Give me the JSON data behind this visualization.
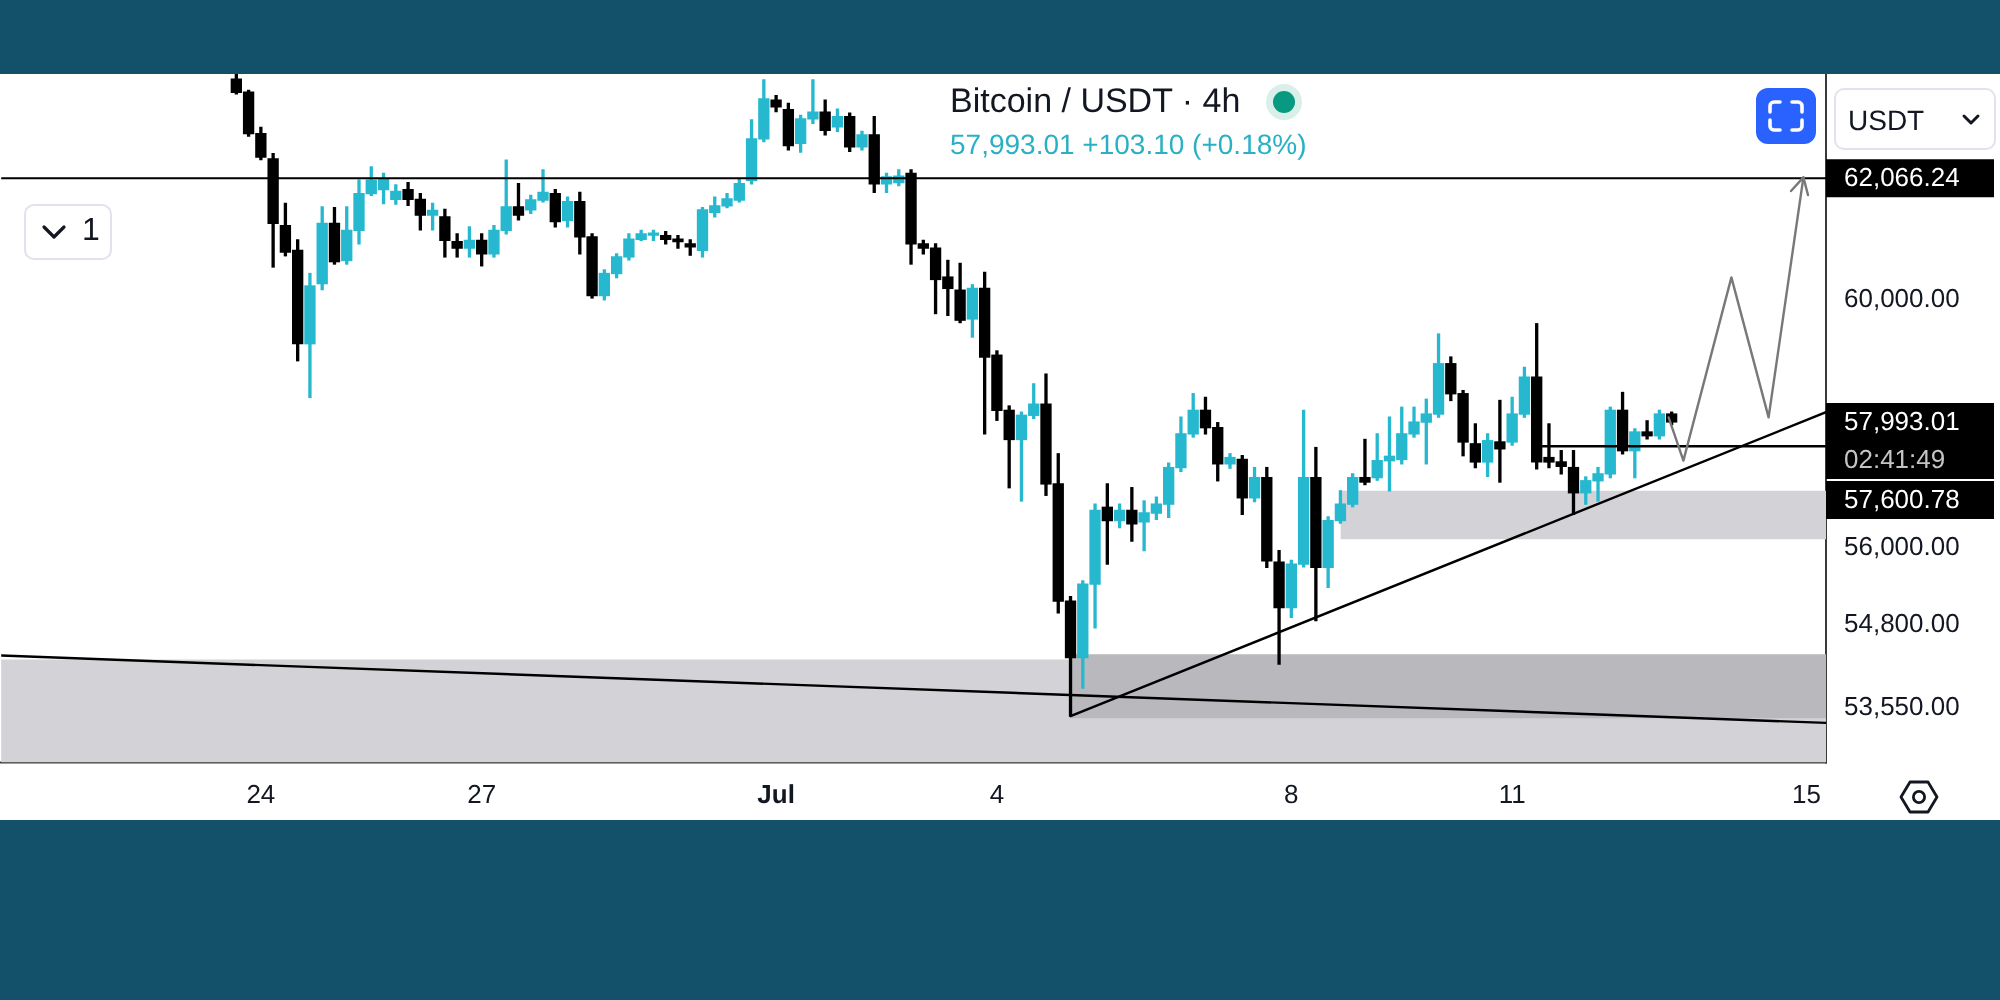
{
  "chart_data": {
    "type": "candlestick",
    "title": "Bitcoin / USDT · 4h",
    "subtitle": "57,993.01 +103.10 (+0.18%)",
    "log": true,
    "x": [
      "--06-23T16:00",
      "--06-23T20:00",
      "--06-24T00:00",
      "--06-24T04:00",
      "--06-24T08:00",
      "--06-24T12:00",
      "--06-24T16:00",
      "--06-24T20:00",
      "--06-25T00:00",
      "--06-25T04:00",
      "--06-25T08:00",
      "--06-25T12:00",
      "--06-25T16:00",
      "--06-25T20:00",
      "--06-26T00:00",
      "--06-26T04:00",
      "--06-26T08:00",
      "--06-26T12:00",
      "--06-26T16:00",
      "--06-26T20:00",
      "--06-27T00:00",
      "--06-27T04:00",
      "--06-27T08:00",
      "--06-27T12:00",
      "--06-27T16:00",
      "--06-27T20:00",
      "--06-28T00:00",
      "--06-28T04:00",
      "--06-28T08:00",
      "--06-28T12:00",
      "--06-28T16:00",
      "--06-28T20:00",
      "--06-29T00:00",
      "--06-29T04:00",
      "--06-29T08:00",
      "--06-29T12:00",
      "--06-29T16:00",
      "--06-29T20:00",
      "--06-30T00:00",
      "--06-30T04:00",
      "--06-30T08:00",
      "--06-30T12:00",
      "--06-30T16:00",
      "--06-30T20:00",
      "--07-01T00:00",
      "--07-01T04:00",
      "--07-01T08:00",
      "--07-01T12:00",
      "--07-01T16:00",
      "--07-01T20:00",
      "--07-02T00:00",
      "--07-02T04:00",
      "--07-02T08:00",
      "--07-02T12:00",
      "--07-02T16:00",
      "--07-02T20:00",
      "--07-03T00:00",
      "--07-03T04:00",
      "--07-03T08:00",
      "--07-03T12:00",
      "--07-03T16:00",
      "--07-03T20:00",
      "--07-04T00:00",
      "--07-04T04:00",
      "--07-04T08:00",
      "--07-04T12:00",
      "--07-04T16:00",
      "--07-04T20:00",
      "--07-05T00:00",
      "--07-05T04:00",
      "--07-05T08:00",
      "--07-05T12:00",
      "--07-05T16:00",
      "--07-05T20:00",
      "--07-06T00:00",
      "--07-06T04:00",
      "--07-06T08:00",
      "--07-06T12:00",
      "--07-06T16:00",
      "--07-06T20:00",
      "--07-07T00:00",
      "--07-07T04:00",
      "--07-07T08:00",
      "--07-07T12:00",
      "--07-07T16:00",
      "--07-07T20:00",
      "--07-08T00:00",
      "--07-08T04:00",
      "--07-08T08:00",
      "--07-08T12:00",
      "--07-08T16:00",
      "--07-08T20:00",
      "--07-09T00:00",
      "--07-09T04:00",
      "--07-09T08:00",
      "--07-09T12:00",
      "--07-09T16:00",
      "--07-09T20:00",
      "--07-10T00:00",
      "--07-10T04:00",
      "--07-10T08:00",
      "--07-10T12:00",
      "--07-10T16:00",
      "--07-10T20:00",
      "--07-11T00:00",
      "--07-11T04:00",
      "--07-11T08:00",
      "--07-11T12:00",
      "--07-11T16:00",
      "--07-11T20:00",
      "--07-12T00:00",
      "--07-12T04:00",
      "--07-12T08:00",
      "--07-12T12:00",
      "--07-12T16:00",
      "--07-12T20:00",
      "--07-13T00:00",
      "--07-13T04:00"
    ],
    "ohlc": [
      [
        63800,
        63880,
        63540,
        63570
      ],
      [
        63570,
        63600,
        62800,
        62840
      ],
      [
        62840,
        62950,
        62390,
        62430
      ],
      [
        62400,
        62490,
        60550,
        61290
      ],
      [
        61250,
        61630,
        60740,
        60800
      ],
      [
        60830,
        61010,
        58990,
        59270
      ],
      [
        59270,
        60440,
        58390,
        60230
      ],
      [
        60270,
        61570,
        60170,
        61290
      ],
      [
        61290,
        61560,
        60600,
        60640
      ],
      [
        60660,
        61570,
        60600,
        61170
      ],
      [
        61170,
        62030,
        60940,
        61800
      ],
      [
        61800,
        62260,
        61770,
        62030
      ],
      [
        61870,
        62150,
        61630,
        62040
      ],
      [
        61700,
        61950,
        61620,
        61840
      ],
      [
        61870,
        61990,
        61600,
        61700
      ],
      [
        61700,
        61800,
        61180,
        61430
      ],
      [
        61430,
        61630,
        61180,
        61510
      ],
      [
        61400,
        61530,
        60720,
        61000
      ],
      [
        60980,
        61110,
        60720,
        60870
      ],
      [
        60870,
        61230,
        60720,
        61000
      ],
      [
        61000,
        61110,
        60570,
        60770
      ],
      [
        60770,
        61250,
        60720,
        61170
      ],
      [
        61170,
        62380,
        61110,
        61570
      ],
      [
        61570,
        61970,
        61350,
        61430
      ],
      [
        61520,
        61770,
        61460,
        61690
      ],
      [
        61690,
        62210,
        61660,
        61820
      ],
      [
        61800,
        61870,
        61230,
        61320
      ],
      [
        61340,
        61740,
        61230,
        61660
      ],
      [
        61660,
        61820,
        60770,
        61060
      ],
      [
        61060,
        61110,
        60030,
        60070
      ],
      [
        60070,
        60500,
        60000,
        60440
      ],
      [
        60440,
        60770,
        60370,
        60720
      ],
      [
        60720,
        61110,
        60670,
        61020
      ],
      [
        61020,
        61170,
        61000,
        61110
      ],
      [
        61090,
        61170,
        61000,
        61110
      ],
      [
        61080,
        61150,
        60940,
        61020
      ],
      [
        61020,
        61080,
        60870,
        60980
      ],
      [
        60940,
        61010,
        60750,
        60890
      ],
      [
        60830,
        61560,
        60720,
        61520
      ],
      [
        61480,
        61740,
        61400,
        61590
      ],
      [
        61590,
        61800,
        61560,
        61710
      ],
      [
        61690,
        62040,
        61660,
        61970
      ],
      [
        62030,
        63080,
        61970,
        62750
      ],
      [
        62750,
        63790,
        62700,
        63450
      ],
      [
        63430,
        63510,
        63230,
        63310
      ],
      [
        63260,
        63370,
        62560,
        62630
      ],
      [
        62670,
        63160,
        62520,
        63100
      ],
      [
        63100,
        63790,
        63020,
        63220
      ],
      [
        63220,
        63430,
        62820,
        62900
      ],
      [
        62960,
        63270,
        62880,
        63140
      ],
      [
        63140,
        63200,
        62530,
        62610
      ],
      [
        62610,
        62880,
        62560,
        62820
      ],
      [
        62820,
        63140,
        61820,
        61970
      ],
      [
        61970,
        62150,
        61820,
        62090
      ],
      [
        61990,
        62210,
        61940,
        62100
      ],
      [
        62150,
        62210,
        60600,
        60940
      ],
      [
        60940,
        61000,
        60770,
        60870
      ],
      [
        60870,
        60940,
        59770,
        60340
      ],
      [
        60380,
        60660,
        59740,
        60190
      ],
      [
        60160,
        60610,
        59620,
        59660
      ],
      [
        59680,
        60250,
        59380,
        60190
      ],
      [
        60190,
        60460,
        57800,
        59050
      ],
      [
        59080,
        59150,
        58020,
        58180
      ],
      [
        58180,
        58250,
        56940,
        57710
      ],
      [
        57710,
        58150,
        56730,
        58100
      ],
      [
        58100,
        58610,
        58050,
        58280
      ],
      [
        58280,
        58770,
        56820,
        57000
      ],
      [
        57000,
        57480,
        54990,
        55170
      ],
      [
        55170,
        55240,
        53430,
        54310
      ],
      [
        54310,
        55480,
        53850,
        55430
      ],
      [
        55430,
        56680,
        54760,
        56580
      ],
      [
        56630,
        57000,
        55740,
        56420
      ],
      [
        56420,
        56680,
        56310,
        56580
      ],
      [
        56580,
        56940,
        56100,
        56370
      ],
      [
        56400,
        56730,
        55950,
        56540
      ],
      [
        56540,
        56790,
        56440,
        56680
      ],
      [
        56680,
        57330,
        56470,
        57260
      ],
      [
        57260,
        58070,
        57200,
        57800
      ],
      [
        57800,
        58450,
        57750,
        58180
      ],
      [
        58180,
        58390,
        57800,
        57900
      ],
      [
        57900,
        57980,
        57050,
        57320
      ],
      [
        57320,
        57480,
        57250,
        57420
      ],
      [
        57390,
        57450,
        56520,
        56780
      ],
      [
        56780,
        57260,
        56720,
        57100
      ],
      [
        57100,
        57260,
        55690,
        55790
      ],
      [
        55770,
        55950,
        54210,
        55070
      ],
      [
        55070,
        55800,
        54920,
        55740
      ],
      [
        55740,
        58180,
        55700,
        57100
      ],
      [
        57100,
        57580,
        54870,
        55690
      ],
      [
        55690,
        56480,
        55380,
        56420
      ],
      [
        56420,
        56890,
        56380,
        56680
      ],
      [
        56680,
        57160,
        56640,
        57100
      ],
      [
        57100,
        57710,
        56990,
        57030
      ],
      [
        57100,
        57800,
        57060,
        57370
      ],
      [
        57370,
        58070,
        56890,
        57440
      ],
      [
        57390,
        58230,
        57320,
        57800
      ],
      [
        57800,
        58230,
        57750,
        57990
      ],
      [
        57990,
        58360,
        57320,
        58120
      ],
      [
        58120,
        59430,
        58070,
        58940
      ],
      [
        58940,
        59050,
        58340,
        58450
      ],
      [
        58450,
        58500,
        57450,
        57670
      ],
      [
        57640,
        57960,
        57260,
        57350
      ],
      [
        57350,
        57800,
        57120,
        57690
      ],
      [
        57670,
        58340,
        57030,
        57560
      ],
      [
        57670,
        58390,
        57620,
        58120
      ],
      [
        58120,
        58880,
        58070,
        58720
      ],
      [
        58720,
        59600,
        57240,
        57350
      ],
      [
        57420,
        57960,
        57260,
        57350
      ],
      [
        57350,
        57530,
        57160,
        57280
      ],
      [
        57260,
        57530,
        56520,
        56860
      ],
      [
        56860,
        57110,
        56680,
        57050
      ],
      [
        57050,
        57260,
        56730,
        57160
      ],
      [
        57160,
        58230,
        57100,
        58180
      ],
      [
        58180,
        58470,
        57480,
        57530
      ],
      [
        57530,
        57880,
        57100,
        57830
      ],
      [
        57830,
        58010,
        57720,
        57770
      ],
      [
        57770,
        58180,
        57720,
        58120
      ],
      [
        58120,
        58150,
        57950,
        57993.01
      ]
    ],
    "colors": [
      "#000000",
      "#000000",
      "#000000",
      "#000000",
      "#000000",
      "#000000",
      "#26b8cf",
      "#26b8cf",
      "#000000",
      "#26b8cf",
      "#26b8cf",
      "#26b8cf",
      "#26b8cf",
      "#26b8cf",
      "#000000",
      "#000000",
      "#26b8cf",
      "#000000",
      "#000000",
      "#26b8cf",
      "#000000",
      "#26b8cf",
      "#26b8cf",
      "#000000",
      "#26b8cf",
      "#26b8cf",
      "#000000",
      "#26b8cf",
      "#000000",
      "#000000",
      "#26b8cf",
      "#26b8cf",
      "#26b8cf",
      "#26b8cf",
      "#26b8cf",
      "#000000",
      "#000000",
      "#000000",
      "#26b8cf",
      "#26b8cf",
      "#26b8cf",
      "#26b8cf",
      "#26b8cf",
      "#26b8cf",
      "#000000",
      "#000000",
      "#26b8cf",
      "#26b8cf",
      "#000000",
      "#26b8cf",
      "#000000",
      "#26b8cf",
      "#000000",
      "#26b8cf",
      "#26b8cf",
      "#000000",
      "#000000",
      "#000000",
      "#000000",
      "#000000",
      "#26b8cf",
      "#000000",
      "#000000",
      "#000000",
      "#26b8cf",
      "#26b8cf",
      "#000000",
      "#000000",
      "#000000",
      "#26b8cf",
      "#26b8cf",
      "#000000",
      "#26b8cf",
      "#000000",
      "#26b8cf",
      "#26b8cf",
      "#26b8cf",
      "#26b8cf",
      "#26b8cf",
      "#000000",
      "#000000",
      "#26b8cf",
      "#000000",
      "#26b8cf",
      "#000000",
      "#000000",
      "#26b8cf",
      "#26b8cf",
      "#000000",
      "#26b8cf",
      "#26b8cf",
      "#26b8cf",
      "#000000",
      "#26b8cf",
      "#26b8cf",
      "#26b8cf",
      "#26b8cf",
      "#26b8cf",
      "#26b8cf",
      "#000000",
      "#000000",
      "#000000",
      "#26b8cf",
      "#000000",
      "#26b8cf",
      "#26b8cf",
      "#000000",
      "#000000",
      "#000000",
      "#000000",
      "#26b8cf",
      "#26b8cf",
      "#26b8cf",
      "#000000",
      "#26b8cf",
      "#000000",
      "#26b8cf",
      "#000000"
    ],
    "series": [
      {
        "type": "line",
        "x": [
          "--07-05T00:00",
          "--07-15T06:20"
        ],
        "values": [
          null,
          null
        ],
        "lower": [
          53400,
          53400
        ],
        "upper": [
          54360,
          54360
        ],
        "color": "#b9b9bd"
      },
      {
        "type": "line",
        "x": [
          "--07-08T16:00",
          "--07-15T06:20"
        ],
        "values": [
          null,
          null
        ],
        "lower": [
          56130,
          56130
        ],
        "upper": [
          56890,
          56890
        ],
        "color": "#d3d3d7"
      },
      {
        "type": "line",
        "x": [
          "--07-05T00:00",
          "--07-15T06:20"
        ],
        "values": [
          53430,
          58150
        ],
        "color": "#000000"
      },
      {
        "type": "line",
        "x": [
          "--06-20T11:20",
          "--07-15T06:20"
        ],
        "values": [
          54340,
          53330
        ],
        "color": "#000000"
      },
      {
        "type": "line",
        "x": [
          "--07-11T10:00",
          "--07-15T06:20"
        ],
        "values": [
          57600.78,
          57600.78
        ],
        "color": "#000000"
      }
    ],
    "bands": [
      {
        "axis": "y",
        "from": 52750,
        "to": 54280,
        "color": "#d3d3d7"
      }
    ],
    "ref_lines": [
      {
        "axis": "y",
        "value": 62066.24,
        "label": "62,066.24",
        "color": "#000000"
      }
    ],
    "annotations": [
      "57,993.01",
      "02:41:49",
      "57,600.78",
      "1",
      "USDT"
    ],
    "xlim": [
      "--06-20T11:20",
      "--07-15T06:20"
    ],
    "xticks": [
      {
        "value": "--06-24",
        "label": "24"
      },
      {
        "value": "--06-27",
        "label": "27"
      },
      {
        "value": "--07-01",
        "label": "Jul"
      },
      {
        "value": "--07-04",
        "label": "4"
      },
      {
        "value": "--07-08",
        "label": "8"
      },
      {
        "value": "--07-11",
        "label": "11"
      },
      {
        "value": "--07-15",
        "label": "15"
      }
    ],
    "ylim": [
      52750,
      63900
    ],
    "yticks": [
      {
        "value": 60000,
        "label": "60,000.00"
      },
      {
        "value": 56000,
        "label": "56,000.00"
      },
      {
        "value": 54800,
        "label": "54,800.00"
      },
      {
        "value": 53550,
        "label": "53,550.00"
      }
    ]
  }
}
